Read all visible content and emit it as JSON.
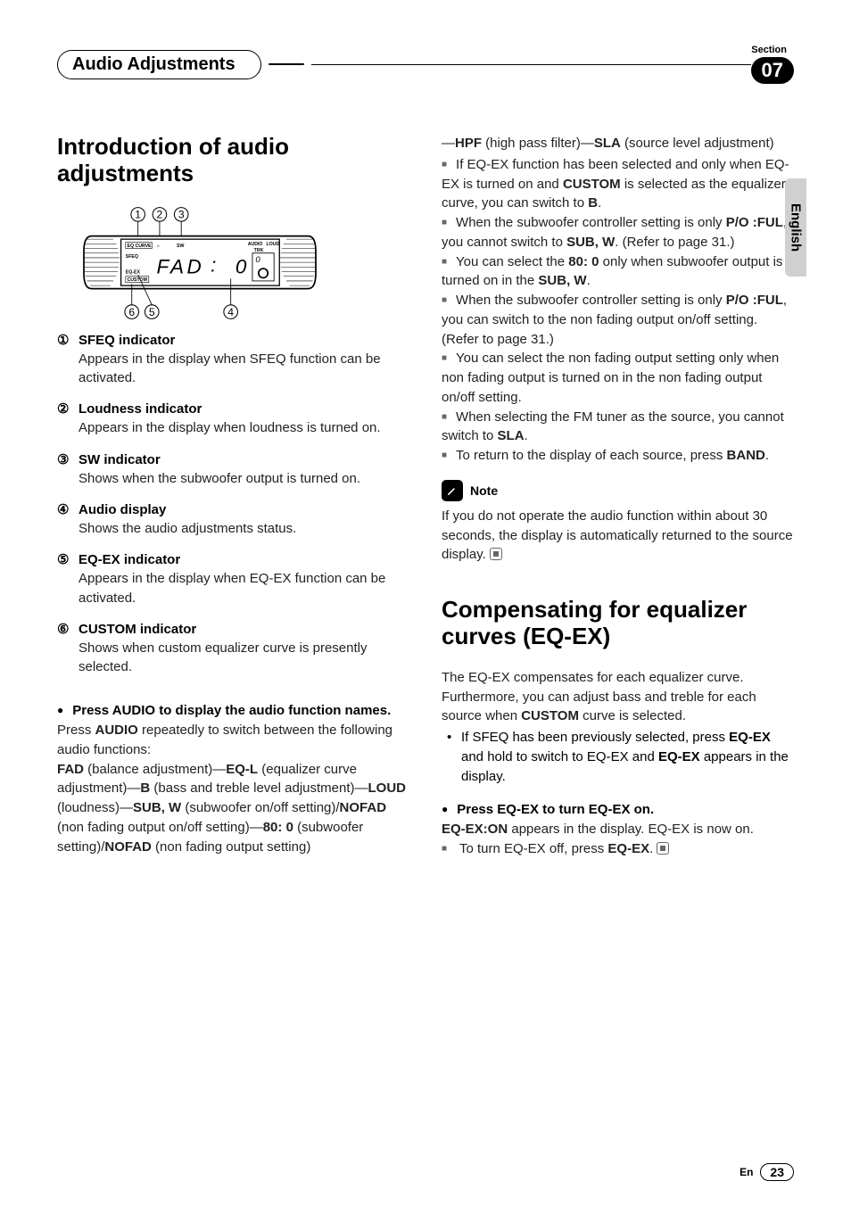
{
  "header": {
    "title": "Audio Adjustments",
    "section_label": "Section",
    "section_number": "07"
  },
  "language_tab": "English",
  "left": {
    "heading": "Introduction of audio adjustments",
    "display_diagram": {
      "top_callouts": [
        "1",
        "2",
        "3"
      ],
      "bottom_callouts": [
        "6",
        "5",
        "4"
      ],
      "lcd_main": "FAD",
      "lcd_sep": ":",
      "lcd_val": "0",
      "labels": [
        "EQ CURVE",
        "SW",
        "AUDIO",
        "LOUD",
        "TRK",
        "SFEQ",
        "EQ-EX",
        "CUSTOM"
      ]
    },
    "indicators": [
      {
        "num": "①",
        "title": "SFEQ indicator",
        "desc": "Appears in the display when SFEQ function can be activated."
      },
      {
        "num": "②",
        "title": "Loudness indicator",
        "desc": "Appears in the display when loudness is turned on."
      },
      {
        "num": "③",
        "title": "SW indicator",
        "desc": "Shows when the subwoofer output is turned on."
      },
      {
        "num": "④",
        "title": "Audio display",
        "desc": "Shows the audio adjustments status."
      },
      {
        "num": "⑤",
        "title": "EQ-EX indicator",
        "desc": "Appears in the display when EQ-EX function can be activated."
      },
      {
        "num": "⑥",
        "title": "CUSTOM indicator",
        "desc": "Shows when custom equalizer curve is presently selected."
      }
    ],
    "step_heading": "Press AUDIO to display the audio function names.",
    "step_line1_a": "Press ",
    "step_line1_b": "AUDIO",
    "step_line1_c": " repeatedly to switch between the following audio functions:",
    "functions_html": "<b>FAD</b> (balance adjustment)—<b>EQ-L</b> (equalizer curve adjustment)—<b>B</b> (bass and treble level adjustment)—<b>LOUD</b> (loudness)—<b>SUB, W</b> (subwoofer on/off setting)/<b>NOFAD</b> (non fading output on/off setting)—<b>80: 0</b> (subwoofer setting)/<b>NOFAD</b> (non fading output setting)"
  },
  "right": {
    "cont_html": "—<b>HPF</b> (high pass filter)—<b>SLA</b> (source level adjustment)",
    "bullets": [
      "If EQ-EX function has been selected and only when EQ-EX is turned on and <b>CUSTOM</b> is selected as the equalizer curve, you can switch to <b>B</b>.",
      "When the subwoofer controller setting is only <b>P/O :FUL</b>, you cannot switch to <b>SUB, W</b>. (Refer to page 31.)",
      "You can select the <b>80: 0</b> only when subwoofer output is turned on in the <b>SUB, W</b>.",
      "When the subwoofer controller setting is only <b>P/O :FUL</b>, you can switch to the non fading output on/off setting. (Refer to page 31.)",
      "You can select the non fading output setting only when non fading output is turned on in the non fading output on/off setting.",
      "When selecting the FM tuner as the source, you cannot switch to <b>SLA</b>.",
      "To return to the display of each source, press <b>BAND</b>."
    ],
    "note_label": "Note",
    "note_text": "If you do not operate the audio function within about 30 seconds, the display is automatically returned to the source display.",
    "h2": "Compensating for equalizer curves (EQ-EX)",
    "h2_body": "The EQ-EX compensates for each equalizer curve. Furthermore, you can adjust bass and treble for each source when <b>CUSTOM</b> curve is selected.",
    "disc_bullet": "If SFEQ has been previously selected, press <b>EQ-EX</b> and hold to switch to EQ-EX and <b>EQ-EX</b> appears in the display.",
    "eqex_step_head": "Press EQ-EX to turn EQ-EX on.",
    "eqex_step_body": "<b>EQ-EX:ON</b> appears in the display. EQ-EX is now on.",
    "eqex_off": "To turn EQ-EX off, press <b>EQ-EX</b>."
  },
  "footer": {
    "lang_short": "En",
    "page_number": "23"
  }
}
